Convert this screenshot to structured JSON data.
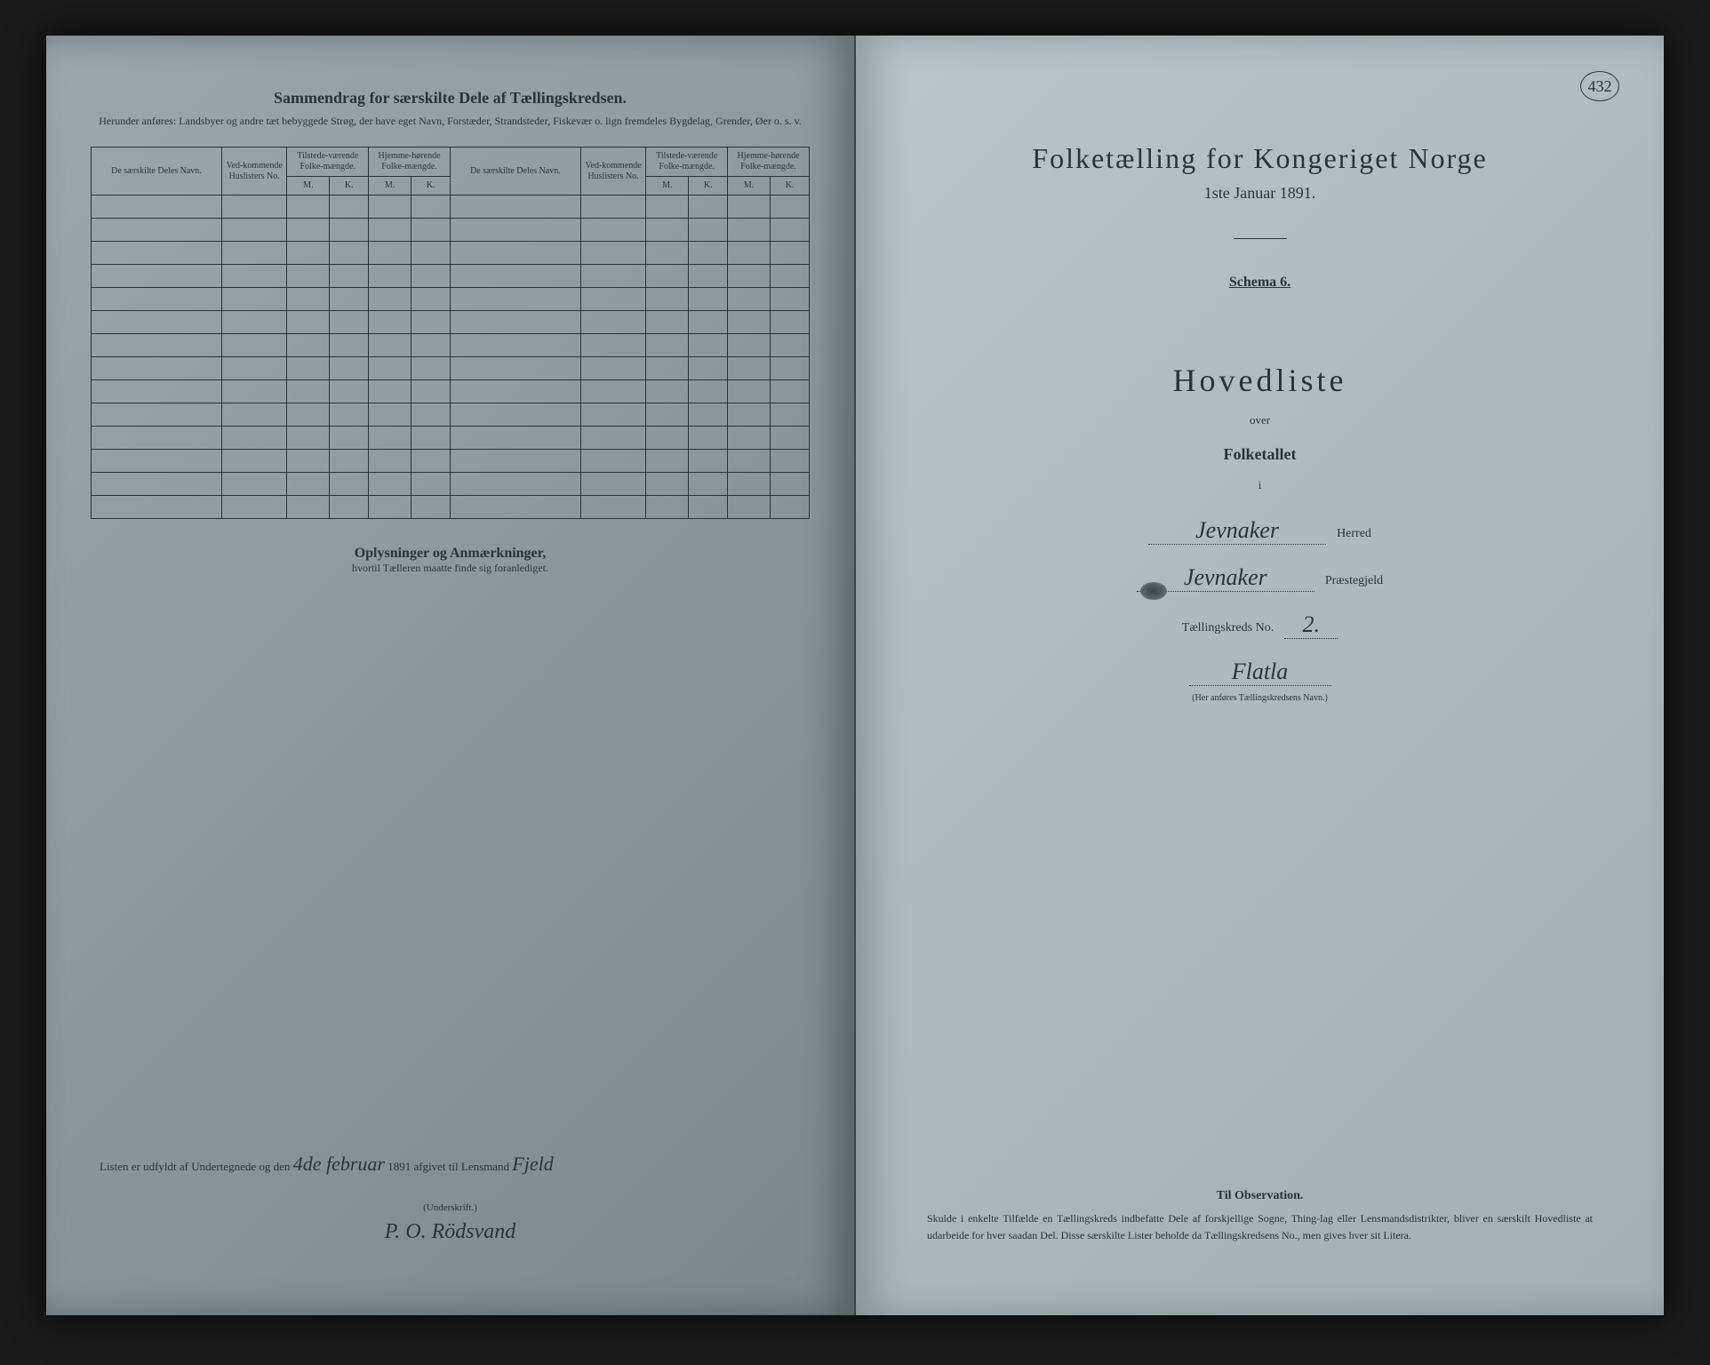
{
  "colors": {
    "page_left_bg": "#8a989c",
    "page_right_bg": "#adb9bd",
    "text": "#2a3438",
    "frame": "#1a1a1a"
  },
  "corner_number": "432",
  "left": {
    "title": "Sammendrag for særskilte Dele af Tællingskredsen.",
    "subtitle": "Herunder anføres: Landsbyer og andre tæt bebyggede Strøg, der have eget Navn, Forstæder, Strandsteder, Fiskevær o. lign fremdeles Bygdelag, Grender, Øer o. s. v.",
    "table": {
      "columns": [
        "De særskilte Deles Navn.",
        "Ved-kommende Huslisters No.",
        "Tilstede-værende Folke-mængde.",
        "Hjemme-hørende Folke-mængde.",
        "De særskilte Deles Navn.",
        "Ved-kommende Huslisters No.",
        "Tilstede-værende Folke-mængde.",
        "Hjemme-hørende Folke-mængde."
      ],
      "subcols": [
        "M.",
        "K.",
        "M.",
        "K.",
        "M.",
        "K.",
        "M.",
        "K."
      ],
      "empty_rows": 14
    },
    "section_title": "Oplysninger og Anmærkninger,",
    "section_sub": "hvortil Tælleren maatte finde sig foranlediget.",
    "sig_prefix": "Listen er udfyldt af Undertegnede og den",
    "sig_date": "4de februar",
    "sig_year": "1891 afgivet til Lensmand",
    "sig_lensmand": "Fjeld",
    "underskrift_label": "(Underskrift.)",
    "sig_name": "P. O. Rödsvand"
  },
  "right": {
    "title": "Folketælling for Kongeriget Norge",
    "date": "1ste Januar 1891.",
    "schema": "Schema 6.",
    "hovedliste": "Hovedliste",
    "over": "over",
    "folketallet": "Folketallet",
    "i": "i",
    "herred_value": "Jevnaker",
    "herred_label": "Herred",
    "praestegjeld_value": "Jevnaker",
    "praestegjeld_label": "Præstegjeld",
    "kreds_label": "Tællingskreds No.",
    "kreds_value": "2.",
    "kreds_name": "Flatla",
    "kreds_note": "(Her anføres Tællingskredsens Navn.)",
    "obs_title": "Til Observation.",
    "obs_text": "Skulde i enkelte Tilfælde en Tællingskreds indbefatte Dele af forskjellige Sogne, Thing-lag eller Lensmandsdistrikter, bliver en særskilt Hovedliste at udarbeide for hver saadan Del. Disse særskilte Lister beholde da Tællingskredsens No., men gives hver sit Litera."
  }
}
